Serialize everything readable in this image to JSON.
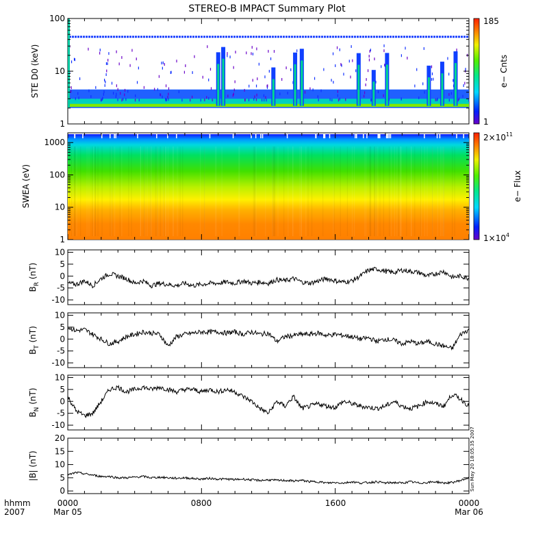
{
  "title": "STEREO-B IMPACT Summary Plot",
  "timestamp": "Sun May 20 18:05:35 2007",
  "time_axis": {
    "row1_labels": [
      "hhmm",
      "0000",
      "0800",
      "1600",
      "0000"
    ],
    "row2_labels": [
      "2007",
      "Mar 05",
      "",
      "",
      "Mar 06"
    ],
    "range_hours": [
      0,
      24
    ]
  },
  "chart_data": [
    {
      "type": "heatmap",
      "name": "ste",
      "ylabel": "STE D0 (keV)",
      "yscale": "log",
      "ylim": [
        1,
        100
      ],
      "yticks": [
        "1",
        "10",
        "100"
      ],
      "colorbar": {
        "label": "e− Cnts",
        "min_label": "1",
        "max_label": "185",
        "min": 1,
        "max": 185
      },
      "features": {
        "background_band_keV": [
          2,
          3
        ],
        "persistent_line_keV": 45,
        "burst_hours": [
          9.0,
          9.3,
          12.3,
          13.6,
          14.0,
          17.4,
          18.3,
          19.1,
          21.6,
          22.4,
          23.2
        ]
      }
    },
    {
      "type": "heatmap",
      "name": "swea",
      "ylabel": "SWEA (eV)",
      "yscale": "log",
      "ylim": [
        1,
        2000
      ],
      "yticks": [
        "1",
        "10",
        "100",
        "1000"
      ],
      "colorbar": {
        "label": "e− Flux",
        "min_label": "1×10^4",
        "max_label": "2×10^11",
        "min": 10000,
        "max": 200000000000
      }
    },
    {
      "type": "line",
      "name": "br",
      "ylabel": "B_R (nT)",
      "ylabel_main": "B",
      "ylabel_sub": "R",
      "ylabel_unit": "(nT)",
      "ylim": [
        -12,
        11
      ],
      "yticks": [
        -10,
        -5,
        0,
        5,
        10
      ],
      "x_hours": [
        0,
        0.5,
        1,
        1.5,
        2,
        2.5,
        3,
        3.5,
        4,
        4.5,
        5,
        5.5,
        6,
        6.5,
        7,
        7.5,
        8,
        8.5,
        9,
        9.5,
        10,
        10.5,
        11,
        11.5,
        12,
        12.5,
        13,
        13.5,
        14,
        14.5,
        15,
        15.5,
        16,
        16.5,
        17,
        17.5,
        18,
        18.5,
        19,
        19.5,
        20,
        20.5,
        21,
        21.5,
        22,
        22.5,
        23,
        23.5,
        24
      ],
      "values": [
        -3,
        -3.5,
        -2,
        -4,
        -1,
        1,
        0,
        -1,
        -3,
        -2,
        -4,
        -3,
        -3.5,
        -4,
        -3,
        -4,
        -3.5,
        -3,
        -3,
        -2.5,
        -3,
        -2,
        -3,
        -2.5,
        -3,
        -1.5,
        -2,
        -1,
        -2.5,
        -3,
        -2,
        -1,
        -2,
        -2.5,
        -2,
        0,
        2.5,
        3,
        2,
        1.5,
        2.5,
        2,
        1.5,
        0,
        1,
        2,
        -0.5,
        0,
        -1
      ]
    },
    {
      "type": "line",
      "name": "bt",
      "ylabel": "B_T (nT)",
      "ylabel_main": "B",
      "ylabel_sub": "T",
      "ylabel_unit": "(nT)",
      "ylim": [
        -12,
        11
      ],
      "yticks": [
        -10,
        -5,
        0,
        5,
        10
      ],
      "x_hours": [
        0,
        0.5,
        1,
        1.5,
        2,
        2.5,
        3,
        3.5,
        4,
        4.5,
        5,
        5.5,
        6,
        6.5,
        7,
        7.5,
        8,
        8.5,
        9,
        9.5,
        10,
        10.5,
        11,
        11.5,
        12,
        12.5,
        13,
        13.5,
        14,
        14.5,
        15,
        15.5,
        16,
        16.5,
        17,
        17.5,
        18,
        18.5,
        19,
        19.5,
        20,
        20.5,
        21,
        21.5,
        22,
        22.5,
        23,
        23.5,
        24
      ],
      "values": [
        5,
        3.5,
        4,
        2,
        0,
        -2,
        -1,
        1,
        2,
        3,
        2.5,
        2,
        -3,
        1,
        2,
        2.5,
        3,
        3,
        3,
        2.5,
        3,
        2,
        3,
        2,
        2.5,
        -1,
        1,
        1.5,
        2,
        2,
        2.5,
        1.5,
        2,
        1.5,
        1,
        0,
        0.5,
        -1,
        0,
        -0.5,
        -2,
        -1,
        -2,
        -1,
        -2,
        -3,
        -4,
        2,
        4
      ]
    },
    {
      "type": "line",
      "name": "bn",
      "ylabel": "B_N (nT)",
      "ylabel_main": "B",
      "ylabel_sub": "N",
      "ylabel_unit": "(nT)",
      "ylim": [
        -12,
        11
      ],
      "yticks": [
        -10,
        -5,
        0,
        5,
        10
      ],
      "x_hours": [
        0,
        0.5,
        1,
        1.5,
        2,
        2.5,
        3,
        3.5,
        4,
        4.5,
        5,
        5.5,
        6,
        6.5,
        7,
        7.5,
        8,
        8.5,
        9,
        9.5,
        10,
        10.5,
        11,
        11.5,
        12,
        12.5,
        13,
        13.5,
        14,
        14.5,
        15,
        15.5,
        16,
        16.5,
        17,
        17.5,
        18,
        18.5,
        19,
        19.5,
        20,
        20.5,
        21,
        21.5,
        22,
        22.5,
        23,
        23.5,
        24
      ],
      "values": [
        2,
        -4,
        -6,
        -5,
        0,
        5,
        6,
        4,
        5,
        6,
        5,
        6,
        5,
        4,
        5,
        5,
        4,
        5,
        4,
        5,
        4,
        2,
        0,
        -3,
        -5,
        0,
        -2,
        2,
        -3,
        -2,
        -1,
        -2,
        -2.5,
        0,
        -1,
        -2,
        -2.5,
        -3,
        -2,
        0,
        -2,
        -3,
        -2,
        0,
        -1,
        -2,
        3,
        1,
        -2
      ]
    },
    {
      "type": "line",
      "name": "bmag",
      "ylabel": "|B| (nT)",
      "ylim": [
        -1,
        20
      ],
      "yticks": [
        0,
        5,
        10,
        15,
        20
      ],
      "x_hours": [
        0,
        0.5,
        1,
        1.5,
        2,
        2.5,
        3,
        3.5,
        4,
        4.5,
        5,
        5.5,
        6,
        6.5,
        7,
        7.5,
        8,
        8.5,
        9,
        9.5,
        10,
        10.5,
        11,
        11.5,
        12,
        12.5,
        13,
        13.5,
        14,
        14.5,
        15,
        15.5,
        16,
        16.5,
        17,
        17.5,
        18,
        18.5,
        19,
        19.5,
        20,
        20.5,
        21,
        21.5,
        22,
        22.5,
        23,
        23.5,
        24
      ],
      "values": [
        6,
        7,
        6.5,
        6,
        5.5,
        5.5,
        5,
        5,
        5.2,
        5.5,
        5,
        5.2,
        5,
        4.8,
        5,
        4.7,
        4.5,
        4.8,
        4.5,
        4.5,
        4.3,
        4.5,
        4.2,
        4,
        4.2,
        4,
        4,
        3.8,
        4,
        3.5,
        3.5,
        3,
        3.2,
        3,
        3.5,
        3,
        3.2,
        3.5,
        3,
        3.2,
        3,
        3.5,
        3,
        3.2,
        3.5,
        3,
        3.2,
        4,
        5
      ]
    }
  ]
}
